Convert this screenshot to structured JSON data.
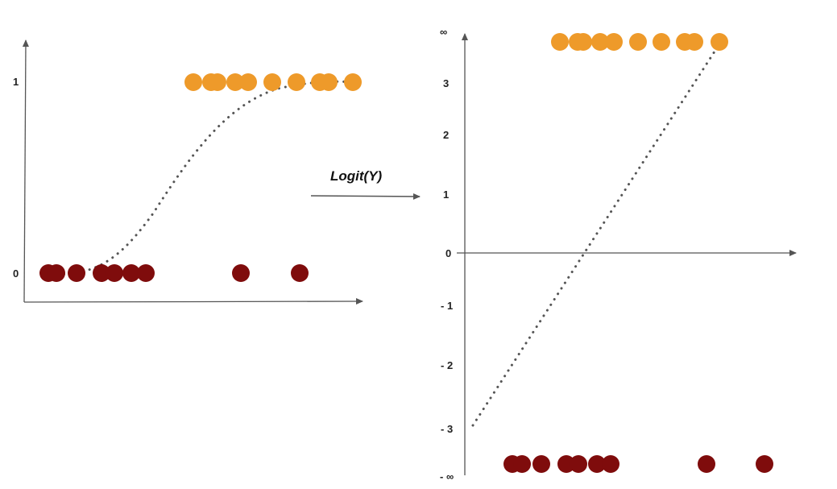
{
  "colors": {
    "axis": "#555555",
    "orange": "#ee9a2a",
    "dark_red": "#7f0c0c",
    "curve": "#555555"
  },
  "transform": {
    "label": "Logit(Y)"
  },
  "left_panel": {
    "y_ticks": [
      "1",
      "0"
    ],
    "class_1_x": [
      240,
      262,
      270,
      292,
      308,
      338,
      368,
      397,
      408,
      438
    ],
    "class_0_x": [
      60,
      70,
      95,
      126,
      142,
      163,
      181,
      299,
      372
    ]
  },
  "right_panel": {
    "y_ticks": [
      "∞",
      "3",
      "2",
      "1",
      "0",
      "- 1",
      "- 2",
      "- 3",
      "- ∞"
    ],
    "class_1_x": [
      695,
      717,
      724,
      745,
      762,
      792,
      821,
      850,
      862,
      893
    ],
    "class_0_x": [
      636,
      648,
      672,
      703,
      718,
      741,
      758,
      877,
      949
    ]
  }
}
